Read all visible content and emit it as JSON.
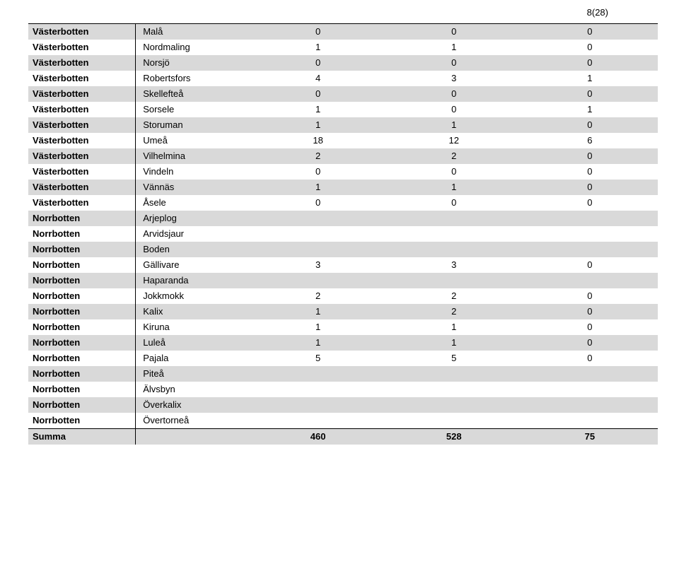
{
  "page_number": "8(28)",
  "colors": {
    "shaded_bg": "#d9d9d9",
    "text": "#000000",
    "rule": "#000000",
    "page_bg": "#ffffff"
  },
  "columns": [
    "region",
    "municipality",
    "v1",
    "v2",
    "v3"
  ],
  "rows": [
    {
      "region": "Västerbotten",
      "municipality": "Malå",
      "v1": "0",
      "v2": "0",
      "v3": "0",
      "shaded": true
    },
    {
      "region": "Västerbotten",
      "municipality": "Nordmaling",
      "v1": "1",
      "v2": "1",
      "v3": "0",
      "shaded": false
    },
    {
      "region": "Västerbotten",
      "municipality": "Norsjö",
      "v1": "0",
      "v2": "0",
      "v3": "0",
      "shaded": true
    },
    {
      "region": "Västerbotten",
      "municipality": "Robertsfors",
      "v1": "4",
      "v2": "3",
      "v3": "1",
      "shaded": false
    },
    {
      "region": "Västerbotten",
      "municipality": "Skellefteå",
      "v1": "0",
      "v2": "0",
      "v3": "0",
      "shaded": true
    },
    {
      "region": "Västerbotten",
      "municipality": "Sorsele",
      "v1": "1",
      "v2": "0",
      "v3": "1",
      "shaded": false
    },
    {
      "region": "Västerbotten",
      "municipality": "Storuman",
      "v1": "1",
      "v2": "1",
      "v3": "0",
      "shaded": true
    },
    {
      "region": "Västerbotten",
      "municipality": "Umeå",
      "v1": "18",
      "v2": "12",
      "v3": "6",
      "shaded": false
    },
    {
      "region": "Västerbotten",
      "municipality": "Vilhelmina",
      "v1": "2",
      "v2": "2",
      "v3": "0",
      "shaded": true
    },
    {
      "region": "Västerbotten",
      "municipality": "Vindeln",
      "v1": "0",
      "v2": "0",
      "v3": "0",
      "shaded": false
    },
    {
      "region": "Västerbotten",
      "municipality": "Vännäs",
      "v1": "1",
      "v2": "1",
      "v3": "0",
      "shaded": true
    },
    {
      "region": "Västerbotten",
      "municipality": "Åsele",
      "v1": "0",
      "v2": "0",
      "v3": "0",
      "shaded": false
    },
    {
      "region": "Norrbotten",
      "municipality": "Arjeplog",
      "v1": "",
      "v2": "",
      "v3": "",
      "shaded": true
    },
    {
      "region": "Norrbotten",
      "municipality": "Arvidsjaur",
      "v1": "",
      "v2": "",
      "v3": "",
      "shaded": false
    },
    {
      "region": "Norrbotten",
      "municipality": "Boden",
      "v1": "",
      "v2": "",
      "v3": "",
      "shaded": true
    },
    {
      "region": "Norrbotten",
      "municipality": "Gällivare",
      "v1": "3",
      "v2": "3",
      "v3": "0",
      "shaded": false
    },
    {
      "region": "Norrbotten",
      "municipality": "Haparanda",
      "v1": "",
      "v2": "",
      "v3": "",
      "shaded": true
    },
    {
      "region": "Norrbotten",
      "municipality": "Jokkmokk",
      "v1": "2",
      "v2": "2",
      "v3": "0",
      "shaded": false
    },
    {
      "region": "Norrbotten",
      "municipality": "Kalix",
      "v1": "1",
      "v2": "2",
      "v3": "0",
      "shaded": true
    },
    {
      "region": "Norrbotten",
      "municipality": "Kiruna",
      "v1": "1",
      "v2": "1",
      "v3": "0",
      "shaded": false
    },
    {
      "region": "Norrbotten",
      "municipality": "Luleå",
      "v1": "1",
      "v2": "1",
      "v3": "0",
      "shaded": true
    },
    {
      "region": "Norrbotten",
      "municipality": "Pajala",
      "v1": "5",
      "v2": "5",
      "v3": "0",
      "shaded": false
    },
    {
      "region": "Norrbotten",
      "municipality": "Piteå",
      "v1": "",
      "v2": "",
      "v3": "",
      "shaded": true
    },
    {
      "region": "Norrbotten",
      "municipality": "Älvsbyn",
      "v1": "",
      "v2": "",
      "v3": "",
      "shaded": false
    },
    {
      "region": "Norrbotten",
      "municipality": "Överkalix",
      "v1": "",
      "v2": "",
      "v3": "",
      "shaded": true
    },
    {
      "region": "Norrbotten",
      "municipality": "Övertorneå",
      "v1": "",
      "v2": "",
      "v3": "",
      "shaded": false
    }
  ],
  "summary": {
    "label": "Summa",
    "v1": "460",
    "v2": "528",
    "v3": "75",
    "shaded": true
  }
}
